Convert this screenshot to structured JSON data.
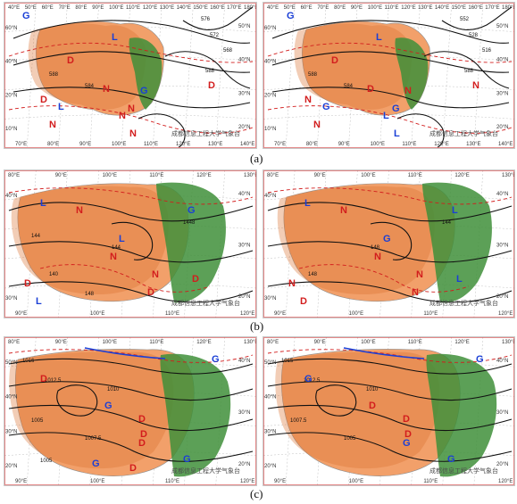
{
  "figure": {
    "row_labels": [
      "(a)",
      "(b)",
      "(c)"
    ]
  },
  "watermark": "成都信息工程大学气象台",
  "panels": [
    {
      "id": "a-left",
      "ticks_bottom": [
        "70°E",
        "80°E",
        "90°E",
        "100°E",
        "110°E",
        "120°E",
        "130°E",
        "140°E"
      ],
      "ticks_top": [
        "40°E",
        "50°E",
        "60°E",
        "70°E",
        "80°E",
        "90°E",
        "100°E",
        "110°E",
        "120°E",
        "130°E",
        "140°E",
        "150°E",
        "160°E",
        "170°E",
        "180°E"
      ],
      "ticks_left": [
        "60°N",
        "40°N",
        "20°N",
        "10°N"
      ],
      "ticks_right": [
        "50°N",
        "40°N",
        "30°N",
        "20°N"
      ],
      "contour_labels": [
        "588",
        "584",
        "588",
        "576",
        "572",
        "568"
      ],
      "markers": [
        {
          "t": "G",
          "c": "#1a3fd6"
        },
        {
          "t": "D",
          "c": "#d21d1d"
        },
        {
          "t": "L",
          "c": "#1a3fd6"
        },
        {
          "t": "N",
          "c": "#d21d1d"
        },
        {
          "t": "G",
          "c": "#1a3fd6"
        },
        {
          "t": "D",
          "c": "#d21d1d"
        },
        {
          "t": "N",
          "c": "#d21d1d"
        },
        {
          "t": "N",
          "c": "#d21d1d"
        },
        {
          "t": "D",
          "c": "#d21d1d"
        },
        {
          "t": "L",
          "c": "#1a3fd6"
        },
        {
          "t": "N",
          "c": "#d21d1d"
        },
        {
          "t": "N",
          "c": "#d21d1d"
        }
      ]
    },
    {
      "id": "a-right",
      "ticks_bottom": [
        "70°E",
        "80°E",
        "90°E",
        "100°E",
        "110°E",
        "120°E",
        "130°E",
        "140°E"
      ],
      "ticks_top": [
        "40°E",
        "50°E",
        "60°E",
        "70°E",
        "80°E",
        "90°E",
        "100°E",
        "110°E",
        "120°E",
        "130°E",
        "140°E",
        "150°E",
        "160°E",
        "170°E",
        "180°E"
      ],
      "ticks_left": [
        "60°N",
        "40°N",
        "20°N",
        "10°N"
      ],
      "ticks_right": [
        "50°N",
        "40°N",
        "30°N",
        "20°N"
      ],
      "contour_labels": [
        "588",
        "584",
        "588",
        "552",
        "528",
        "516"
      ],
      "markers": [
        {
          "t": "G",
          "c": "#1a3fd6"
        },
        {
          "t": "D",
          "c": "#d21d1d"
        },
        {
          "t": "L",
          "c": "#1a3fd6"
        },
        {
          "t": "D",
          "c": "#d21d1d"
        },
        {
          "t": "N",
          "c": "#d21d1d"
        },
        {
          "t": "N",
          "c": "#d21d1d"
        },
        {
          "t": "G",
          "c": "#1a3fd6"
        },
        {
          "t": "L",
          "c": "#1a3fd6"
        },
        {
          "t": "N",
          "c": "#d21d1d"
        },
        {
          "t": "G",
          "c": "#1a3fd6"
        },
        {
          "t": "N",
          "c": "#d21d1d"
        },
        {
          "t": "L",
          "c": "#1a3fd6"
        }
      ]
    },
    {
      "id": "b-left",
      "ticks_bottom": [
        "90°E",
        "100°E",
        "110°E",
        "120°E"
      ],
      "ticks_top": [
        "80°E",
        "90°E",
        "100°E",
        "110°E",
        "120°E",
        "130°E"
      ],
      "ticks_left": [
        "40°N",
        "30°N"
      ],
      "ticks_right": [
        "40°N",
        "30°N",
        "20°N"
      ],
      "contour_labels": [
        "1448",
        "144",
        "140",
        "148",
        "144"
      ],
      "markers": [
        {
          "t": "L",
          "c": "#1a3fd6"
        },
        {
          "t": "N",
          "c": "#d21d1d"
        },
        {
          "t": "L",
          "c": "#1a3fd6"
        },
        {
          "t": "G",
          "c": "#1a3fd6"
        },
        {
          "t": "N",
          "c": "#d21d1d"
        },
        {
          "t": "D",
          "c": "#d21d1d"
        },
        {
          "t": "L",
          "c": "#1a3fd6"
        },
        {
          "t": "N",
          "c": "#d21d1d"
        },
        {
          "t": "D",
          "c": "#d21d1d"
        },
        {
          "t": "D",
          "c": "#d21d1d"
        }
      ]
    },
    {
      "id": "b-right",
      "ticks_bottom": [
        "90°E",
        "100°E",
        "110°E",
        "120°E"
      ],
      "ticks_top": [
        "80°E",
        "90°E",
        "100°E",
        "110°E",
        "120°E",
        "130°E"
      ],
      "ticks_left": [
        "40°N",
        "30°N"
      ],
      "ticks_right": [
        "40°N",
        "30°N",
        "20°N"
      ],
      "contour_labels": [
        "144",
        "148",
        "148"
      ],
      "markers": [
        {
          "t": "L",
          "c": "#1a3fd6"
        },
        {
          "t": "N",
          "c": "#d21d1d"
        },
        {
          "t": "G",
          "c": "#1a3fd6"
        },
        {
          "t": "L",
          "c": "#1a3fd6"
        },
        {
          "t": "N",
          "c": "#d21d1d"
        },
        {
          "t": "N",
          "c": "#d21d1d"
        },
        {
          "t": "D",
          "c": "#d21d1d"
        },
        {
          "t": "N",
          "c": "#d21d1d"
        },
        {
          "t": "L",
          "c": "#1a3fd6"
        },
        {
          "t": "N",
          "c": "#d21d1d"
        }
      ]
    },
    {
      "id": "c-left",
      "ticks_bottom": [
        "90°E",
        "100°E",
        "110°E",
        "120°E"
      ],
      "ticks_top": [
        "80°E",
        "90°E",
        "100°E",
        "110°E",
        "120°E",
        "130°E"
      ],
      "ticks_left": [
        "50°N",
        "40°N",
        "30°N",
        "20°N"
      ],
      "ticks_right": [
        "40°N",
        "30°N",
        "20°N"
      ],
      "contour_labels": [
        "1016",
        "1012.5",
        "1010",
        "1005",
        "1007.5",
        "1005"
      ],
      "markers": [
        {
          "t": "G",
          "c": "#1a3fd6"
        },
        {
          "t": "D",
          "c": "#d21d1d"
        },
        {
          "t": "G",
          "c": "#1a3fd6"
        },
        {
          "t": "D",
          "c": "#d21d1d"
        },
        {
          "t": "D",
          "c": "#d21d1d"
        },
        {
          "t": "D",
          "c": "#d21d1d"
        },
        {
          "t": "G",
          "c": "#1a3fd6"
        },
        {
          "t": "D",
          "c": "#d21d1d"
        },
        {
          "t": "G",
          "c": "#1a3fd6"
        }
      ]
    },
    {
      "id": "c-right",
      "ticks_bottom": [
        "90°E",
        "100°E",
        "110°E",
        "120°E"
      ],
      "ticks_top": [
        "80°E",
        "90°E",
        "100°E",
        "110°E",
        "120°E",
        "130°E"
      ],
      "ticks_left": [
        "50°N",
        "40°N",
        "30°N",
        "20°N"
      ],
      "ticks_right": [
        "40°N",
        "30°N",
        "20°N"
      ],
      "contour_labels": [
        "1015",
        "1012.5",
        "1010",
        "1007.5",
        "1005"
      ],
      "markers": [
        {
          "t": "G",
          "c": "#1a3fd6"
        },
        {
          "t": "G",
          "c": "#1a3fd6"
        },
        {
          "t": "D",
          "c": "#d21d1d"
        },
        {
          "t": "D",
          "c": "#d21d1d"
        },
        {
          "t": "D",
          "c": "#d21d1d"
        },
        {
          "t": "G",
          "c": "#1a3fd6"
        },
        {
          "t": "G",
          "c": "#1a3fd6"
        }
      ]
    }
  ],
  "colors": {
    "terrain_low": "#f2a06a",
    "terrain_high": "#d9702f",
    "vegetation": "#3f8f3a",
    "contour": "#111111",
    "isotherm": "#d21d1d",
    "front": "#1a3fd6"
  }
}
